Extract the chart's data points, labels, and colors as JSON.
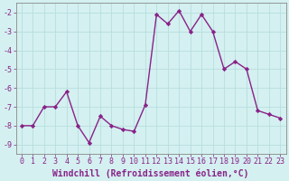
{
  "x": [
    0,
    1,
    2,
    3,
    4,
    5,
    6,
    7,
    8,
    9,
    10,
    11,
    12,
    13,
    14,
    15,
    16,
    17,
    18,
    19,
    20,
    21,
    22,
    23
  ],
  "y": [
    -8.0,
    -8.0,
    -7.0,
    -7.0,
    -6.2,
    -8.0,
    -8.9,
    -7.5,
    -8.0,
    -8.2,
    -8.3,
    -6.9,
    -2.1,
    -2.6,
    -1.9,
    -3.0,
    -2.1,
    -3.0,
    -5.0,
    -4.6,
    -5.0,
    -7.2,
    -7.4,
    -7.6
  ],
  "line_color": "#882288",
  "marker": "D",
  "marker_size": 2.2,
  "bg_color": "#d4f0f0",
  "grid_color": "#b8dede",
  "xlabel": "Windchill (Refroidissement éolien,°C)",
  "ylim": [
    -9.5,
    -1.5
  ],
  "xlim": [
    -0.5,
    23.5
  ],
  "yticks": [
    -2,
    -3,
    -4,
    -5,
    -6,
    -7,
    -8,
    -9
  ],
  "xticks": [
    0,
    1,
    2,
    3,
    4,
    5,
    6,
    7,
    8,
    9,
    10,
    11,
    12,
    13,
    14,
    15,
    16,
    17,
    18,
    19,
    20,
    21,
    22,
    23
  ],
  "tick_fontsize": 6.0,
  "xlabel_fontsize": 7.0,
  "label_color": "#882288",
  "spine_color": "#888888",
  "linewidth": 1.0
}
